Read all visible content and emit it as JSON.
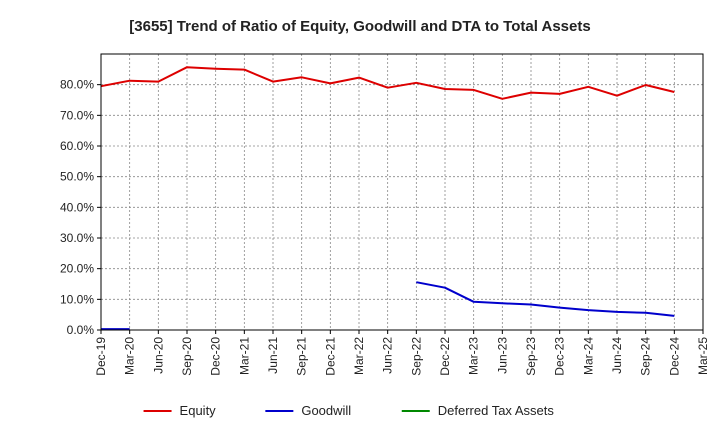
{
  "chart_data": {
    "type": "line",
    "title": "[3655]  Trend of Ratio of Equity, Goodwill and DTA to Total Assets",
    "xlabel": "",
    "ylabel": "",
    "ylim": [
      0,
      90
    ],
    "yticks": [
      0,
      10,
      20,
      30,
      40,
      50,
      60,
      70,
      80
    ],
    "ytick_labels": [
      "0.0%",
      "10.0%",
      "20.0%",
      "30.0%",
      "40.0%",
      "50.0%",
      "60.0%",
      "70.0%",
      "80.0%"
    ],
    "x_tick_labels": [
      "Dec-19",
      "Mar-20",
      "Jun-20",
      "Sep-20",
      "Dec-20",
      "Mar-21",
      "Jun-21",
      "Sep-21",
      "Dec-21",
      "Mar-22",
      "Jun-22",
      "Sep-22",
      "Dec-22",
      "Mar-23",
      "Jun-23",
      "Sep-23",
      "Dec-23",
      "Mar-24",
      "Jun-24",
      "Sep-24",
      "Dec-24",
      "Mar-25"
    ],
    "grid": true,
    "legend_position": "bottom",
    "series": [
      {
        "name": "Equity",
        "color": "#dd0000",
        "values": [
          79.5,
          81.3,
          81.0,
          85.7,
          85.2,
          84.9,
          81.0,
          82.4,
          80.4,
          82.3,
          79.0,
          80.6,
          78.6,
          78.3,
          75.4,
          77.4,
          77.0,
          79.3,
          76.4,
          79.9,
          77.6,
          null
        ]
      },
      {
        "name": "Goodwill",
        "color": "#0000cc",
        "values": [
          0.3,
          0.3,
          null,
          null,
          null,
          null,
          null,
          null,
          null,
          null,
          null,
          15.6,
          13.8,
          9.2,
          8.7,
          8.3,
          7.3,
          6.5,
          5.9,
          5.6,
          4.6,
          null
        ]
      },
      {
        "name": "Deferred Tax Assets",
        "color": "#008800",
        "values": [
          null,
          null,
          null,
          null,
          null,
          null,
          null,
          null,
          null,
          null,
          null,
          null,
          null,
          null,
          null,
          null,
          null,
          null,
          null,
          null,
          null,
          null
        ]
      }
    ]
  }
}
